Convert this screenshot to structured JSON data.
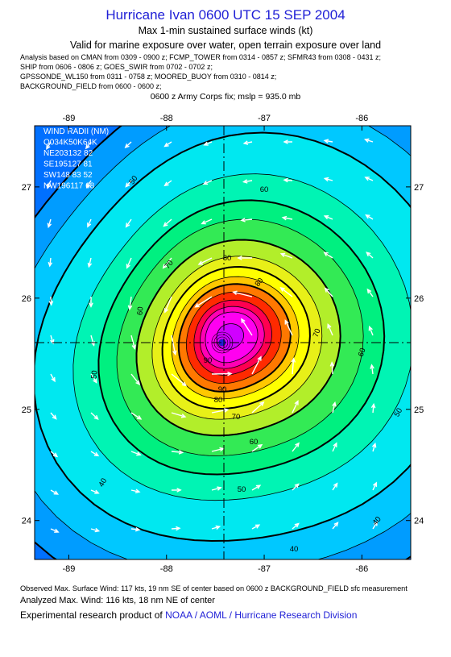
{
  "header": {
    "title": "Hurricane Ivan 0600 UTC 15 SEP 2004",
    "subtitle": "Max 1-min sustained surface winds (kt)",
    "valid_line": "Valid for marine exposure over water, open terrain exposure over land",
    "analysis_lines": [
      "Analysis based on  CMAN from 0309 - 0900 z;  FCMP_TOWER from 0314 - 0857 z;  SFMR43 from 0308 - 0431 z;",
      "SHIP from 0606 - 0806 z;  GOES_SWIR from 0702 - 0702 z;",
      "GPSSONDE_WL150 from 0311 - 0758 z;  MOORED_BUOY from 0310 - 0814 z;",
      "BACKGROUND_FIELD from 0600 - 0600 z;"
    ],
    "fix_line": "0600 z Army Corps fix; mslp = 935.0 mb"
  },
  "map": {
    "lon_ticks": [
      "-89",
      "-88",
      "-87",
      "-86"
    ],
    "lat_ticks": [
      "27",
      "26",
      "25",
      "24"
    ],
    "lon_values": [
      -89,
      -88,
      -87,
      -86
    ],
    "lat_values": [
      27,
      26,
      25,
      24
    ],
    "lon_range": [
      -89.35,
      -85.5
    ],
    "lat_range": [
      23.65,
      27.55
    ],
    "center": {
      "lon": -87.43,
      "lat": 25.6
    },
    "wind_radii_box": [
      "WIND RADII (NM)",
      "Q034K50K64K",
      "NE203132 82",
      "SE195127 81",
      "SW148 83 52",
      "NW196117 68"
    ],
    "contour_labels": [
      "40",
      "40",
      "40",
      "50",
      "50",
      "50",
      "50",
      "60",
      "60",
      "60",
      "60",
      "70",
      "70",
      "70",
      "80",
      "80",
      "80",
      "90",
      "90"
    ],
    "levels": [
      {
        "kt": 30,
        "color": "#009cff"
      },
      {
        "kt": 35,
        "color": "#00c8ff"
      },
      {
        "kt": 40,
        "color": "#00e8f0"
      },
      {
        "kt": 45,
        "color": "#00f4b4"
      },
      {
        "kt": 50,
        "color": "#00f080"
      },
      {
        "kt": 55,
        "color": "#33ea55"
      },
      {
        "kt": 60,
        "color": "#b2ee2a"
      },
      {
        "kt": 65,
        "color": "#e8f018"
      },
      {
        "kt": 70,
        "color": "#ffff00"
      },
      {
        "kt": 75,
        "color": "#ffc800"
      },
      {
        "kt": 80,
        "color": "#ff7800"
      },
      {
        "kt": 85,
        "color": "#ff2a00"
      },
      {
        "kt": 90,
        "color": "#ff0050"
      },
      {
        "kt": 95,
        "color": "#ff00b4"
      },
      {
        "kt": 100,
        "color": "#ff00f0"
      },
      {
        "kt": 110,
        "color": "#d000ff"
      }
    ],
    "frame_color": "#000000",
    "vector_color": "#ffffff"
  },
  "footer": {
    "observed": "Observed Max. Surface Wind: 117 kts, 19 nm SE of center based on 0600 z BACKGROUND_FIELD sfc measurement",
    "analyzed": "Analyzed Max. Wind: 116 kts, 18 nm NE of center",
    "credit_prefix": "Experimental research product of ",
    "credit_org": "NOAA / AOML / Hurricane Research Division"
  }
}
